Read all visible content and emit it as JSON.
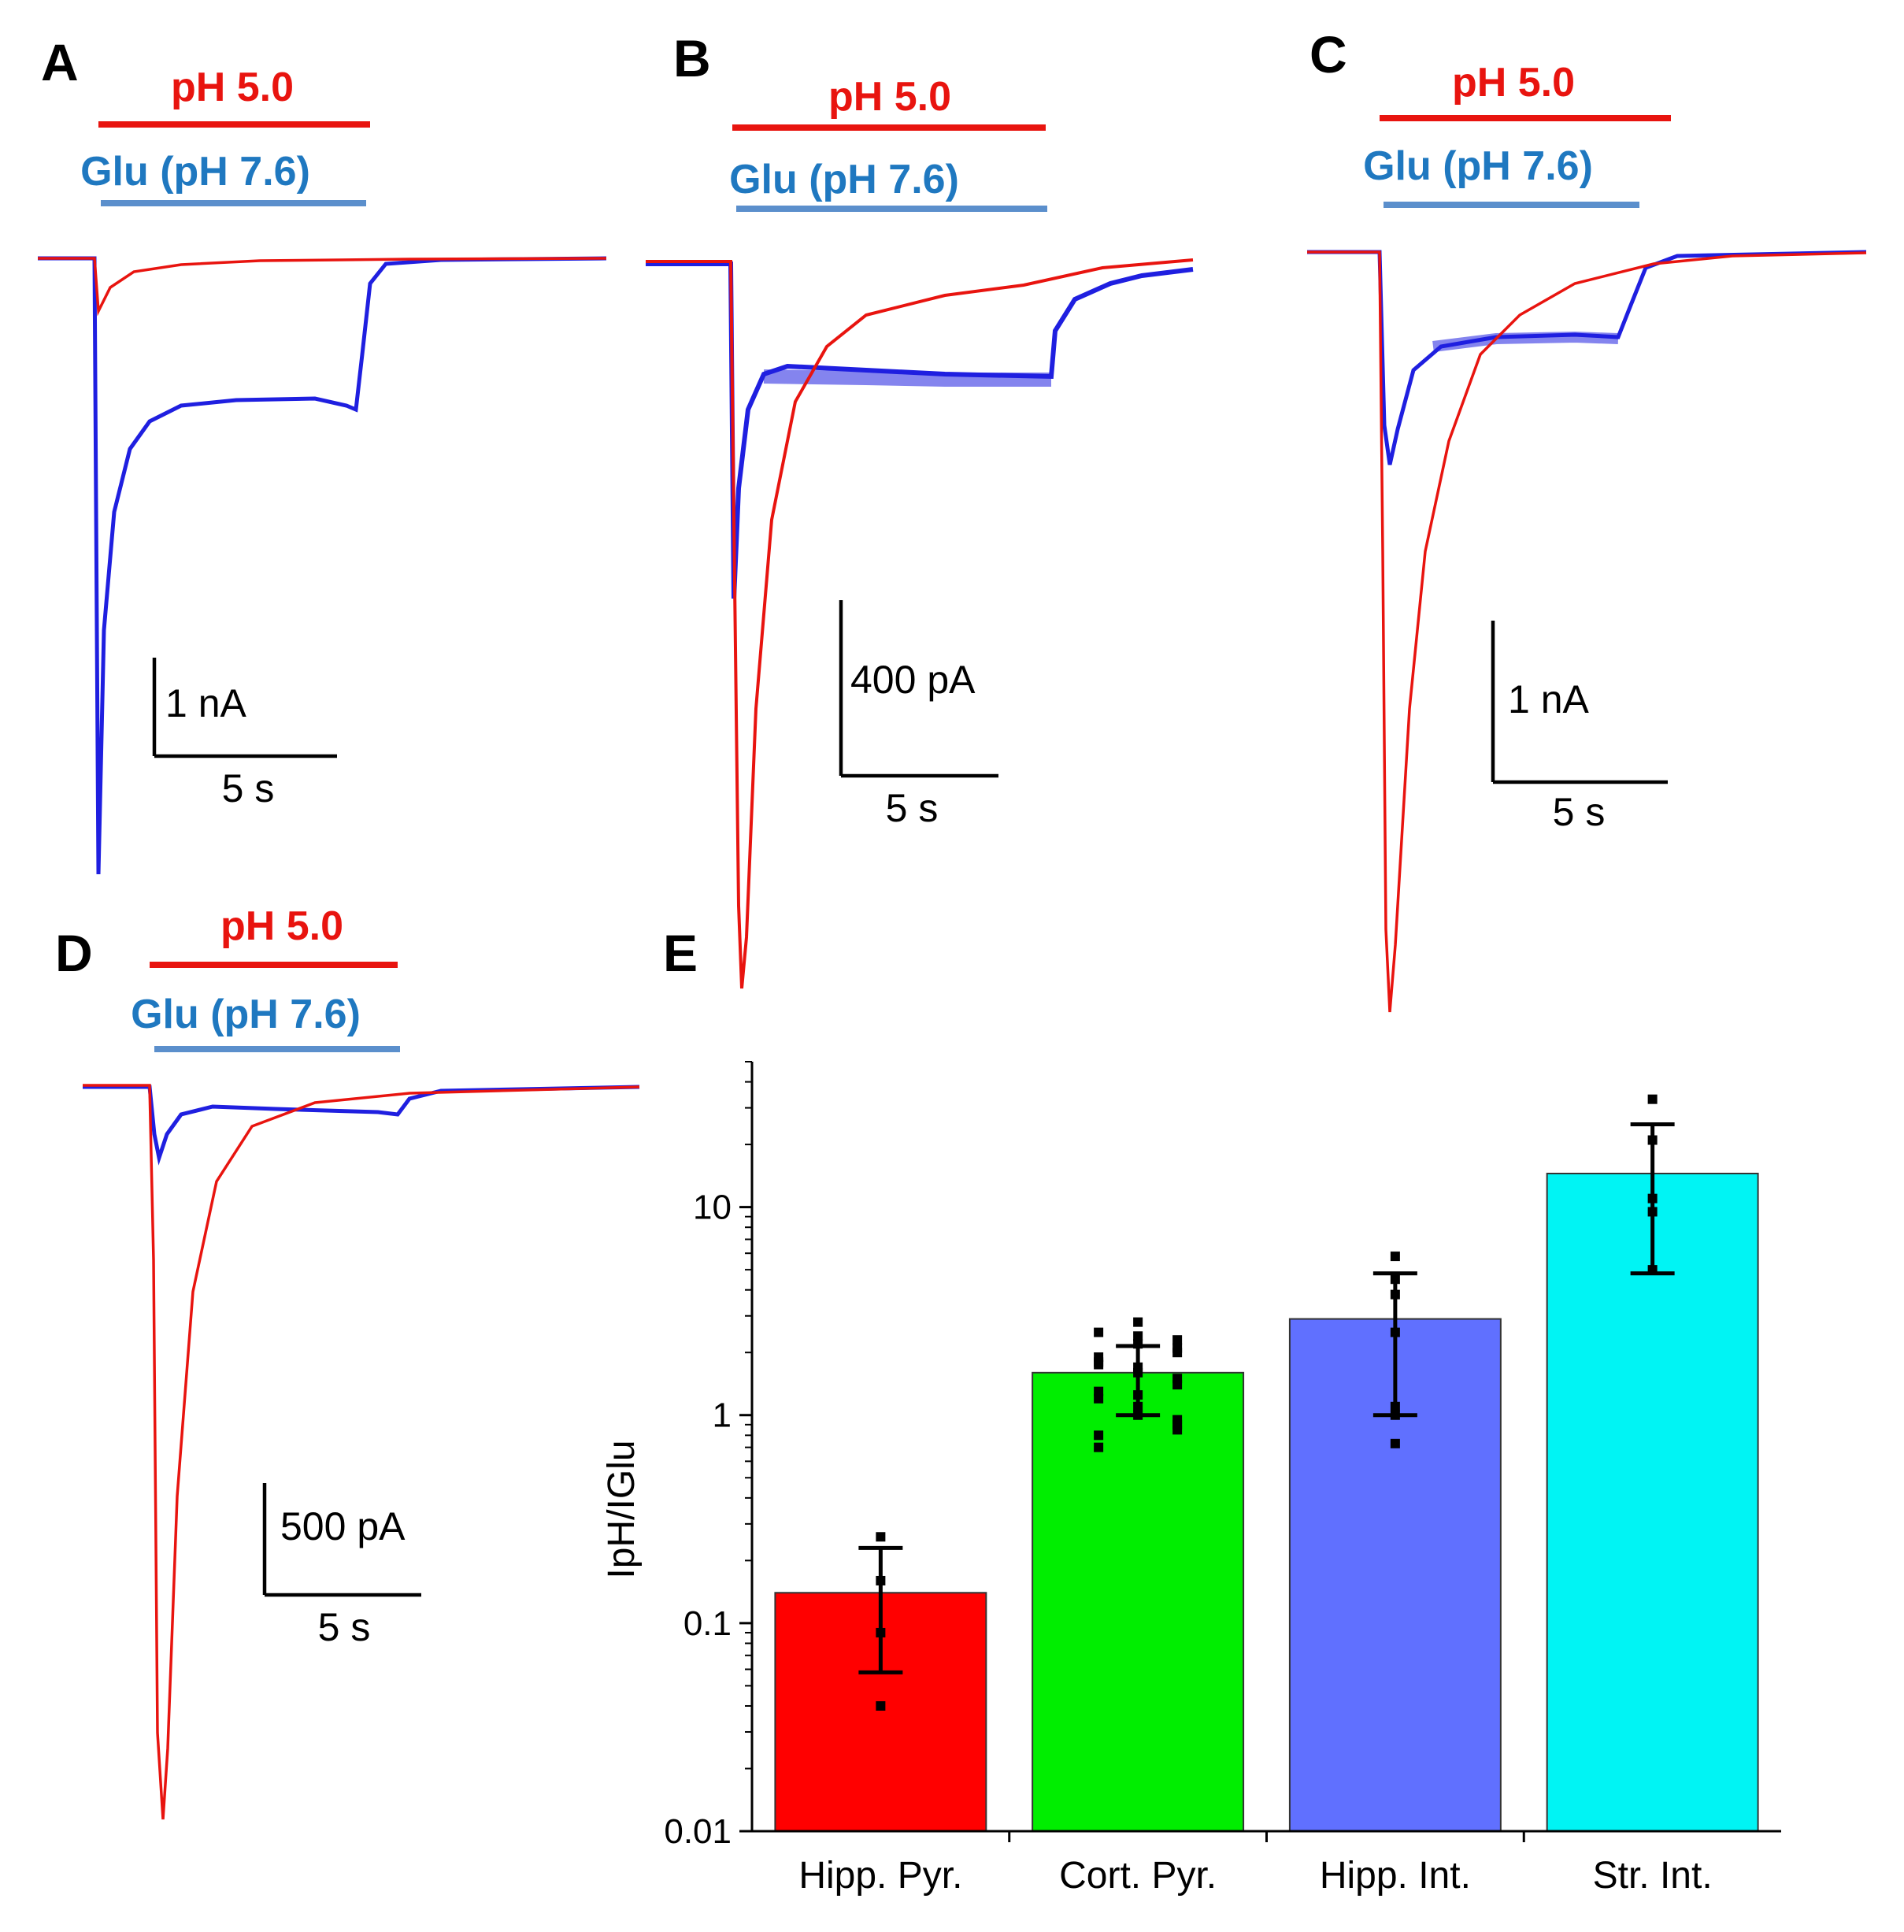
{
  "colors": {
    "ph_trace": "#e8140f",
    "glu_trace": "#1f1fe0",
    "ph_bar_line": "#e8140f",
    "glu_bar_line": "#5b8fcc",
    "ph_label": "#e8140f",
    "glu_label": "#1f78c0"
  },
  "traces": [
    {
      "panel": "A",
      "ph_label": "pH 5.0",
      "glu_label": "Glu (pH 7.6)",
      "amp_scale": "1 nA",
      "time_scale": "5 s"
    },
    {
      "panel": "B",
      "ph_label": "pH 5.0",
      "glu_label": "Glu (pH 7.6)",
      "amp_scale": "400 pA",
      "time_scale": "5 s"
    },
    {
      "panel": "C",
      "ph_label": "pH 5.0",
      "glu_label": "Glu (pH 7.6)",
      "amp_scale": "1 nA",
      "time_scale": "5 s"
    },
    {
      "panel": "D",
      "ph_label": "pH 5.0",
      "glu_label": "Glu (pH 7.6)",
      "amp_scale": "500 pA",
      "time_scale": "5 s"
    }
  ],
  "chart_data": {
    "type": "bar",
    "panel": "E",
    "categories": [
      "Hipp. Pyr.",
      "Cort. Pyr.",
      "Hipp. Int.",
      "Str. Int."
    ],
    "values": [
      0.14,
      1.6,
      2.9,
      14.5
    ],
    "error_low": [
      0.058,
      1.0,
      1.0,
      4.8
    ],
    "error_high": [
      0.23,
      2.15,
      4.8,
      25
    ],
    "points": [
      [
        0.26,
        0.16,
        0.09,
        0.04
      ],
      [
        2.5,
        2.2,
        2.0,
        1.8,
        1.6,
        1.4,
        1.2,
        1.0,
        0.85,
        0.7,
        2.4,
        2.1,
        1.9,
        1.7,
        1.5,
        1.3,
        1.1,
        0.95,
        0.8,
        2.8,
        2.3,
        1.75,
        1.25,
        0.9
      ],
      [
        5.8,
        4.5,
        3.8,
        2.5,
        1.1,
        1.0,
        0.73
      ],
      [
        33,
        21,
        11,
        9.5,
        5
      ]
    ],
    "bar_colors": [
      "#ff0000",
      "#00ee00",
      "#6070ff",
      "#00f4f4"
    ],
    "ylabel": "IpH/IGlu",
    "yscale": "log",
    "ylim": [
      0.01,
      50
    ],
    "yticks": [
      {
        "value": 0.01,
        "label": "0.01"
      },
      {
        "value": 0.1,
        "label": "0.1"
      },
      {
        "value": 1,
        "label": "1"
      },
      {
        "value": 10,
        "label": "10"
      }
    ]
  }
}
